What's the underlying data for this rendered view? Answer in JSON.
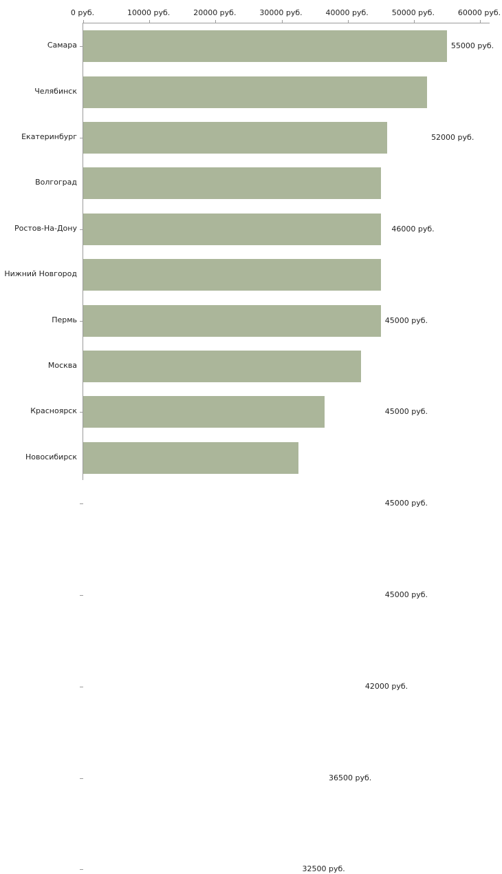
{
  "chart_data": {
    "type": "bar",
    "orientation": "horizontal",
    "title": "",
    "xlabel": "",
    "ylabel": "",
    "categories": [
      "Самара",
      "Челябинск",
      "Екатеринбург",
      "Волгоград",
      "Ростов-На-Дону",
      "Нижний Новгород",
      "Пермь",
      "Москва",
      "Красноярск",
      "Новосибирск"
    ],
    "values": [
      55000,
      52000,
      46000,
      45000,
      45000,
      45000,
      45000,
      42000,
      36500,
      32500
    ],
    "value_labels": [
      "55000 руб.",
      "52000 руб.",
      "46000 руб.",
      "45000 руб.",
      "45000 руб.",
      "45000 руб.",
      "45000 руб.",
      "42000 руб.",
      "36500 руб.",
      "32500 руб."
    ],
    "x_ticks": [
      0,
      10000,
      20000,
      30000,
      40000,
      50000,
      60000
    ],
    "x_tick_labels": [
      "0 руб.",
      "10000 руб.",
      "20000 руб.",
      "30000 руб.",
      "40000 руб.",
      "50000 руб.",
      "60000 руб."
    ],
    "xlim": [
      0,
      60000
    ],
    "grid": false,
    "legend": "none",
    "bar_color": "#abb69a",
    "axis_color": "#9a9a9a",
    "text_color": "#222222",
    "background_color": "#ffffff"
  }
}
